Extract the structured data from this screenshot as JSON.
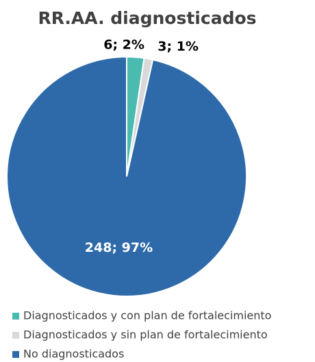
{
  "chart_data": {
    "type": "pie",
    "title": "RR.AA. diagnosticados",
    "categories": [
      "Diagnosticados y con plan de fortalecimiento",
      "Diagnosticados y sin plan de fortalecimiento",
      "No diagnosticados"
    ],
    "values": [
      6,
      3,
      248
    ],
    "value_labels": [
      "6; 2%",
      "3; 1%",
      "248; 97%"
    ],
    "colors": [
      "#4bbbb0",
      "#d9d9d9",
      "#2e6aa9"
    ],
    "legend": "bottom"
  }
}
